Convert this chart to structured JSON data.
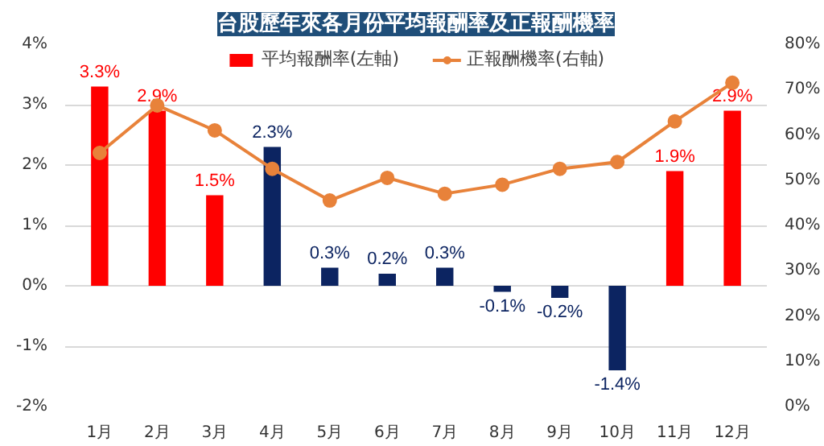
{
  "chart_data": {
    "type": "bar",
    "title": "台股歷年來各月份平均報酬率及正報酬機率",
    "categories": [
      "1月",
      "2月",
      "3月",
      "4月",
      "5月",
      "6月",
      "7月",
      "8月",
      "9月",
      "10月",
      "11月",
      "12月"
    ],
    "series": [
      {
        "name": "平均報酬率(左軸)",
        "value_labels": [
          "3.3%",
          "2.9%",
          "1.5%",
          "2.3%",
          "0.3%",
          "0.2%",
          "0.3%",
          "-0.1%",
          "-0.2%",
          "-1.4%",
          "1.9%",
          "2.9%"
        ],
        "color": "#0c2461",
        "colors": [
          "#ff0000",
          "#ff0000",
          "#ff0000",
          "#0c2461",
          "#0c2461",
          "#0c2461",
          "#0c2461",
          "#0c2461",
          "#0c2461",
          "#0c2461",
          "#ff0000",
          "#ff0000"
        ],
        "values": [
          3.3,
          2.9,
          1.5,
          2.3,
          0.3,
          0.2,
          0.3,
          -0.1,
          -0.2,
          -1.4,
          1.9,
          2.9
        ]
      },
      {
        "name": "正報酬機率(右軸)",
        "type": "line",
        "axis": "y2",
        "color": "#e8823a",
        "marker": "circle",
        "values": [
          56,
          66.5,
          61,
          52.5,
          45.5,
          50.5,
          47,
          49,
          52.5,
          54,
          63,
          71.5
        ]
      }
    ],
    "ylim": [
      -2,
      4
    ],
    "yticks": [
      {
        "value": -2,
        "label": "-2%"
      },
      {
        "value": -1,
        "label": "-1%"
      },
      {
        "value": 0,
        "label": "0%"
      },
      {
        "value": 1,
        "label": "1%"
      },
      {
        "value": 2,
        "label": "2%"
      },
      {
        "value": 3,
        "label": "3%"
      },
      {
        "value": 4,
        "label": "4%"
      }
    ],
    "y2lim": [
      0,
      80
    ],
    "y2ticks": [
      {
        "value": 0,
        "label": "0%"
      },
      {
        "value": 10,
        "label": "10%"
      },
      {
        "value": 20,
        "label": "20%"
      },
      {
        "value": 30,
        "label": "30%"
      },
      {
        "value": 40,
        "label": "40%"
      },
      {
        "value": 50,
        "label": "50%"
      },
      {
        "value": 60,
        "label": "60%"
      },
      {
        "value": 70,
        "label": "70%"
      },
      {
        "value": 80,
        "label": "80%"
      }
    ],
    "grid": "y",
    "legend": "top"
  }
}
